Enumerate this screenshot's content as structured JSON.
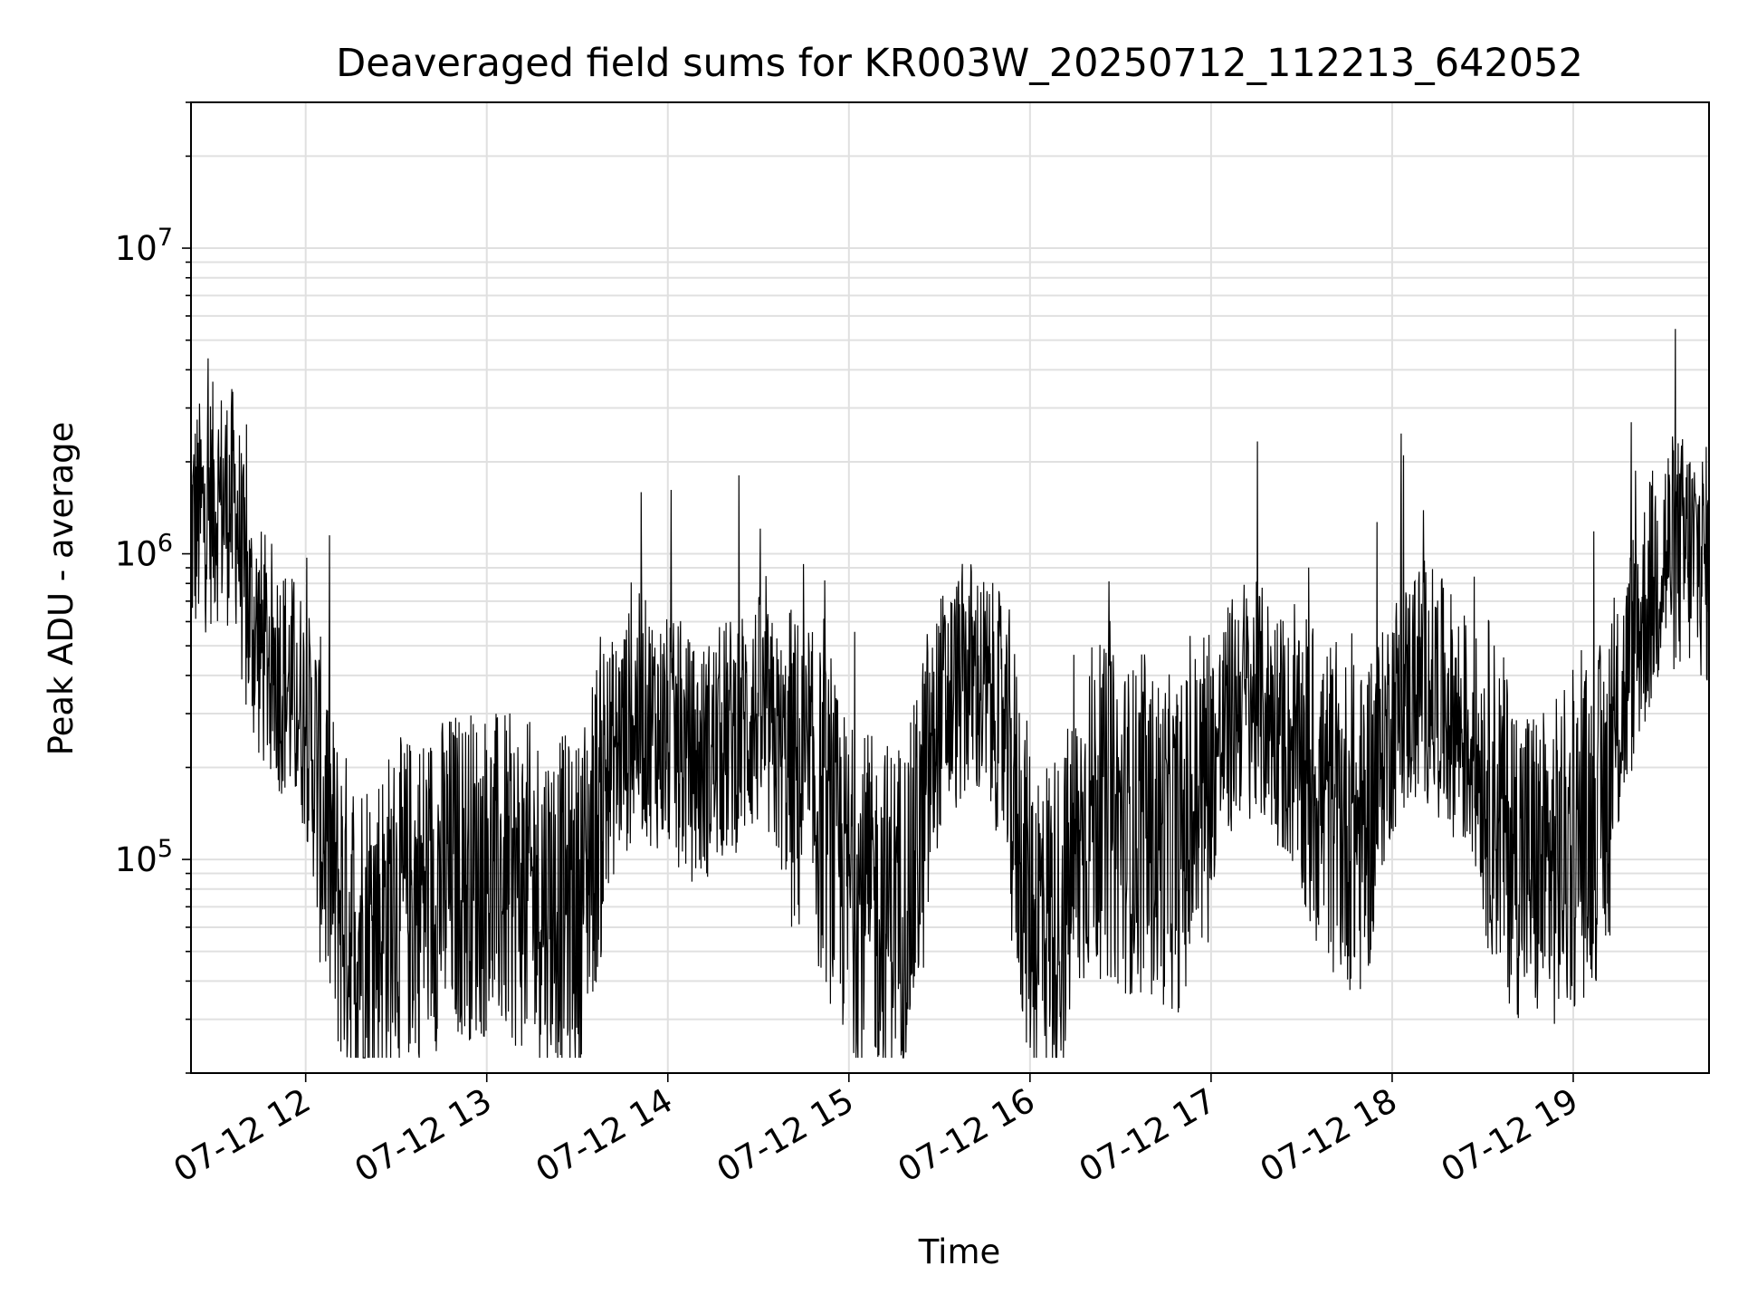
{
  "chart_data": {
    "type": "line",
    "title": "Deaveraged field sums for KR003W_20250712_112213_642052",
    "xlabel": "Time",
    "ylabel": "Peak ADU - average",
    "y_scale": "log",
    "xlim": [
      "2025-07-12 11:22",
      "2025-07-12 19:45"
    ],
    "ylim": [
      20000,
      30000000
    ],
    "x_tick_labels": [
      "07-12 12",
      "07-12 13",
      "07-12 14",
      "07-12 15",
      "07-12 16",
      "07-12 17",
      "07-12 18",
      "07-12 19"
    ],
    "y_tick_labels": [
      {
        "base": "10",
        "exp": "5",
        "value": 100000
      },
      {
        "base": "10",
        "exp": "6",
        "value": 1000000
      },
      {
        "base": "10",
        "exp": "7",
        "value": 10000000
      }
    ],
    "grid": true,
    "line_color": "#000000",
    "series": [
      {
        "x": [
          "2025-07-12 11:22",
          "2025-07-12 11:30",
          "2025-07-12 11:37",
          "2025-07-12 11:40",
          "2025-07-12 11:45",
          "2025-07-12 11:52",
          "2025-07-12 12:00",
          "2025-07-12 12:05",
          "2025-07-12 12:10",
          "2025-07-12 12:15",
          "2025-07-12 12:22",
          "2025-07-12 12:30",
          "2025-07-12 12:40",
          "2025-07-12 12:50",
          "2025-07-12 13:00",
          "2025-07-12 13:15",
          "2025-07-12 13:30",
          "2025-07-12 13:40",
          "2025-07-12 13:50",
          "2025-07-12 14:00",
          "2025-07-12 14:10",
          "2025-07-12 14:20",
          "2025-07-12 14:30",
          "2025-07-12 14:40",
          "2025-07-12 14:50",
          "2025-07-12 15:00",
          "2025-07-12 15:10",
          "2025-07-12 15:20",
          "2025-07-12 15:30",
          "2025-07-12 15:40",
          "2025-07-12 15:50",
          "2025-07-12 16:00",
          "2025-07-12 16:10",
          "2025-07-12 16:20",
          "2025-07-12 16:30",
          "2025-07-12 16:40",
          "2025-07-12 16:50",
          "2025-07-12 17:00",
          "2025-07-12 17:10",
          "2025-07-12 17:20",
          "2025-07-12 17:30",
          "2025-07-12 17:40",
          "2025-07-12 17:50",
          "2025-07-12 18:00",
          "2025-07-12 18:10",
          "2025-07-12 18:20",
          "2025-07-12 18:30",
          "2025-07-12 18:40",
          "2025-07-12 18:50",
          "2025-07-12 19:00",
          "2025-07-12 19:10",
          "2025-07-12 19:20",
          "2025-07-12 19:30",
          "2025-07-12 19:40",
          "2025-07-12 19:45"
        ],
        "y": [
          1200000,
          1500000,
          1400000,
          700000,
          500000,
          400000,
          300000,
          150000,
          80000,
          60000,
          60000,
          70000,
          80000,
          90000,
          90000,
          80000,
          70000,
          200000,
          300000,
          250000,
          200000,
          250000,
          300000,
          200000,
          150000,
          80000,
          70000,
          75000,
          300000,
          400000,
          300000,
          70000,
          65000,
          150000,
          130000,
          120000,
          110000,
          200000,
          350000,
          300000,
          200000,
          150000,
          120000,
          300000,
          400000,
          300000,
          200000,
          110000,
          90000,
          110000,
          150000,
          500000,
          1000000,
          1000000,
          900000
        ]
      }
    ]
  }
}
